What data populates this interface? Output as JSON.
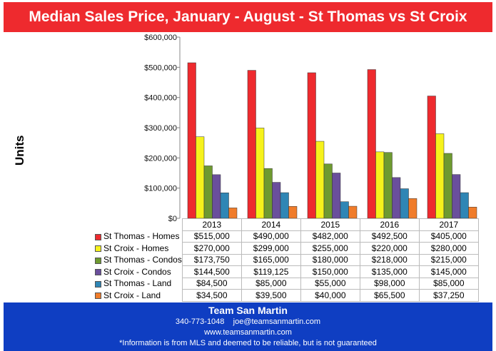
{
  "chart_data": {
    "type": "bar",
    "title": "Median Sales Price,  January - August - St Thomas vs St Croix",
    "ylabel": "Units",
    "xlabel": "",
    "ylim": [
      0,
      600000
    ],
    "yticks": [
      "$0",
      "$100,000",
      "$200,000",
      "$300,000",
      "$400,000",
      "$500,000",
      "$600,000"
    ],
    "categories": [
      "2013",
      "2014",
      "2015",
      "2016",
      "2017"
    ],
    "legend": "table-left",
    "series": [
      {
        "name": "St Thomas - Homes",
        "color": "#ee2a2e",
        "values": [
          515000,
          490000,
          482000,
          492500,
          405000
        ],
        "labels": [
          "$515,000",
          "$490,000",
          "$482,000",
          "$492,500",
          "$405,000"
        ]
      },
      {
        "name": "St Croix - Homes",
        "color": "#f6f21c",
        "values": [
          270000,
          299000,
          255000,
          220000,
          280000
        ],
        "labels": [
          "$270,000",
          "$299,000",
          "$255,000",
          "$220,000",
          "$280,000"
        ]
      },
      {
        "name": "St Thomas - Condos",
        "color": "#6e9a30",
        "values": [
          173750,
          165000,
          180000,
          218000,
          215000
        ],
        "labels": [
          "$173,750",
          "$165,000",
          "$180,000",
          "$218,000",
          "$215,000"
        ]
      },
      {
        "name": "St Croix - Condos",
        "color": "#6a4f9c",
        "values": [
          144500,
          119125,
          150000,
          135000,
          145000
        ],
        "labels": [
          "$144,500",
          "$119,125",
          "$150,000",
          "$135,000",
          "$145,000"
        ]
      },
      {
        "name": "St Thomas - Land",
        "color": "#2f86b5",
        "values": [
          84500,
          85000,
          55000,
          98000,
          85000
        ],
        "labels": [
          "$84,500",
          "$85,000",
          "$55,000",
          "$98,000",
          "$85,000"
        ]
      },
      {
        "name": "St Croix - Land",
        "color": "#f07c2a",
        "values": [
          34500,
          39500,
          40000,
          65500,
          37250
        ],
        "labels": [
          "$34,500",
          "$39,500",
          "$40,000",
          "$65,500",
          "$37,250"
        ]
      }
    ]
  },
  "footer": {
    "name": "Team San Martin",
    "phone": "340-773-1048",
    "email": "joe@teamsanmartin.com",
    "website": "www.teamsanmartin.com",
    "disclaimer": "*Information is from MLS and deemed to be reliable, but is not guaranteed"
  }
}
